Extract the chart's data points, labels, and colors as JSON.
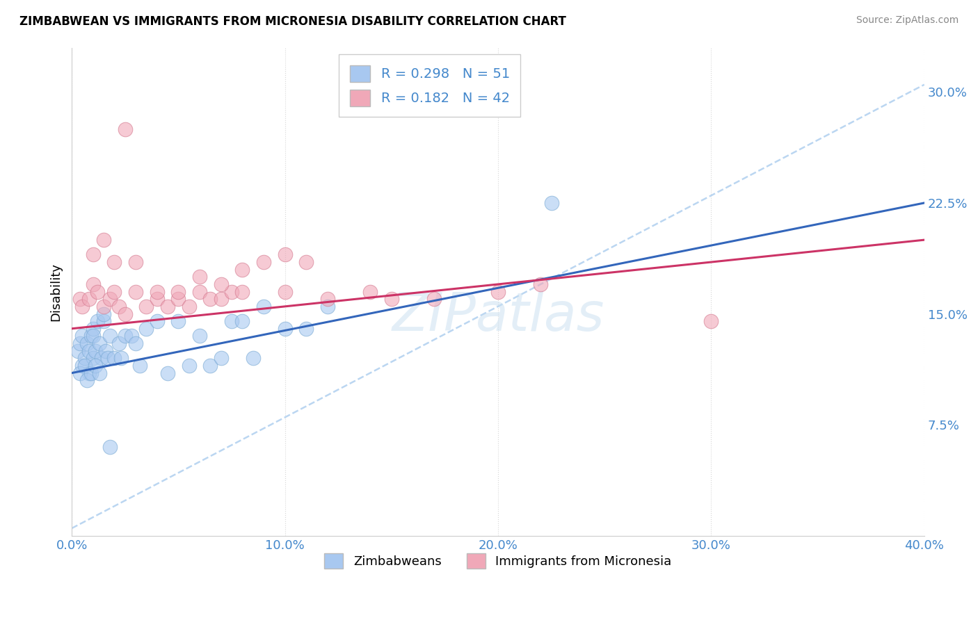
{
  "title": "ZIMBABWEAN VS IMMIGRANTS FROM MICRONESIA DISABILITY CORRELATION CHART",
  "source": "Source: ZipAtlas.com",
  "xlabel_vals": [
    0.0,
    10.0,
    20.0,
    30.0,
    40.0
  ],
  "ylabel_vals": [
    7.5,
    15.0,
    22.5,
    30.0
  ],
  "ylabel_labels": [
    "7.5%",
    "15.0%",
    "22.5%",
    "30.0%"
  ],
  "xmin": 0.0,
  "xmax": 40.0,
  "ymin": 0.0,
  "ymax": 33.0,
  "legend_label1": "Zimbabweans",
  "legend_label2": "Immigrants from Micronesia",
  "R1": 0.298,
  "N1": 51,
  "R2": 0.182,
  "N2": 42,
  "color1": "#a8c8f0",
  "color1_edge": "#7aaad4",
  "color2": "#f0a8b8",
  "color2_edge": "#d47a90",
  "line_color1": "#3366bb",
  "line_color2": "#cc3366",
  "dash_line_color": "#aaccee",
  "watermark": "ZIPatlas",
  "blue_x": [
    0.3,
    0.4,
    0.5,
    0.5,
    0.6,
    0.7,
    0.8,
    0.8,
    0.9,
    1.0,
    1.0,
    1.0,
    1.1,
    1.2,
    1.3,
    1.4,
    1.5,
    1.6,
    1.7,
    1.8,
    2.0,
    2.2,
    2.5,
    2.8,
    3.0,
    3.5,
    4.0,
    5.0,
    6.0,
    7.5,
    8.0,
    9.0,
    12.0,
    1.5,
    0.4,
    0.6,
    0.7,
    0.9,
    1.1,
    1.3,
    2.3,
    3.2,
    4.5,
    5.5,
    6.5,
    7.0,
    8.5,
    10.0,
    11.0,
    22.5,
    1.8
  ],
  "blue_y": [
    12.5,
    13.0,
    13.5,
    11.5,
    12.0,
    13.0,
    12.5,
    11.0,
    13.5,
    12.0,
    14.0,
    13.5,
    12.5,
    14.5,
    13.0,
    12.0,
    14.5,
    12.5,
    12.0,
    13.5,
    12.0,
    13.0,
    13.5,
    13.5,
    13.0,
    14.0,
    14.5,
    14.5,
    13.5,
    14.5,
    14.5,
    15.5,
    15.5,
    15.0,
    11.0,
    11.5,
    10.5,
    11.0,
    11.5,
    11.0,
    12.0,
    11.5,
    11.0,
    11.5,
    11.5,
    12.0,
    12.0,
    14.0,
    14.0,
    22.5,
    6.0
  ],
  "pink_x": [
    0.4,
    0.5,
    0.8,
    1.0,
    1.2,
    1.5,
    1.8,
    2.0,
    2.2,
    2.5,
    3.0,
    3.5,
    4.0,
    4.5,
    5.0,
    5.5,
    6.0,
    6.5,
    7.0,
    7.5,
    8.0,
    10.0,
    12.0,
    15.0,
    17.0,
    20.0,
    22.0,
    1.0,
    1.5,
    2.0,
    3.0,
    4.0,
    5.0,
    6.0,
    7.0,
    8.0,
    9.0,
    10.0,
    11.0,
    14.0,
    2.5,
    30.0
  ],
  "pink_y": [
    16.0,
    15.5,
    16.0,
    17.0,
    16.5,
    15.5,
    16.0,
    16.5,
    15.5,
    15.0,
    16.5,
    15.5,
    16.0,
    15.5,
    16.0,
    15.5,
    16.5,
    16.0,
    16.0,
    16.5,
    16.5,
    16.5,
    16.0,
    16.0,
    16.0,
    16.5,
    17.0,
    19.0,
    20.0,
    18.5,
    18.5,
    16.5,
    16.5,
    17.5,
    17.0,
    18.0,
    18.5,
    19.0,
    18.5,
    16.5,
    27.5,
    14.5
  ],
  "blue_line_x0": 0.0,
  "blue_line_y0": 11.0,
  "blue_line_x1": 40.0,
  "blue_line_y1": 22.5,
  "pink_line_x0": 0.0,
  "pink_line_y0": 14.0,
  "pink_line_x1": 40.0,
  "pink_line_y1": 20.0,
  "dash_line_x0": 0.0,
  "dash_line_y0": 0.5,
  "dash_line_x1": 40.0,
  "dash_line_y1": 30.5
}
